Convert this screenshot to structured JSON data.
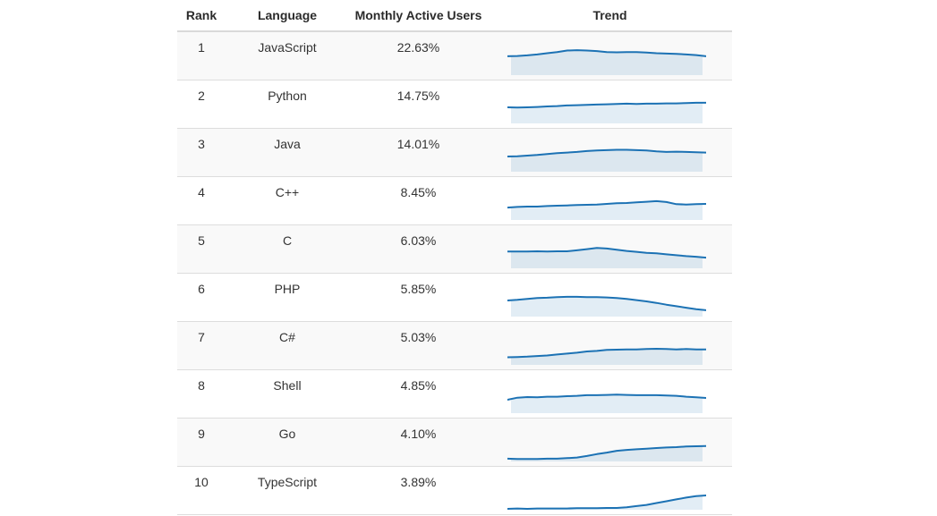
{
  "page": {
    "background": "#ffffff"
  },
  "table": {
    "columns": [
      {
        "label": "Rank"
      },
      {
        "label": "Language"
      },
      {
        "label": "Monthly Active Users"
      },
      {
        "label": "Trend"
      }
    ],
    "rows": [
      {
        "rank": "1",
        "language": "JavaScript",
        "mau": "22.63%"
      },
      {
        "rank": "2",
        "language": "Python",
        "mau": "14.75%"
      },
      {
        "rank": "3",
        "language": "Java",
        "mau": "14.01%"
      },
      {
        "rank": "4",
        "language": "C++",
        "mau": "8.45%"
      },
      {
        "rank": "5",
        "language": "C",
        "mau": "6.03%"
      },
      {
        "rank": "6",
        "language": "PHP",
        "mau": "5.85%"
      },
      {
        "rank": "7",
        "language": "C#",
        "mau": "5.03%"
      },
      {
        "rank": "8",
        "language": "Shell",
        "mau": "4.85%"
      },
      {
        "rank": "9",
        "language": "Go",
        "mau": "4.10%"
      },
      {
        "rank": "10",
        "language": "TypeScript",
        "mau": "3.89%"
      }
    ]
  },
  "chart_data": {
    "type": "table",
    "title": "",
    "columns": [
      "Rank",
      "Language",
      "Monthly Active Users",
      "Trend"
    ],
    "sparkline_type": "area",
    "trend_scale": "normalized 0-100 relative usage over time, higher = more active users",
    "colors": {
      "line": "#1c72b4",
      "fill": "rgba(28,114,180,0.13)",
      "row_alt_bg": "#f9f9f9",
      "border": "#dddddd"
    },
    "rows": [
      {
        "rank": 1,
        "language": "JavaScript",
        "monthly_active_users_pct": 22.63,
        "trend": [
          62,
          63,
          65,
          68,
          72,
          76,
          81,
          82,
          81,
          79,
          76,
          75,
          76,
          76,
          74,
          72,
          71,
          70,
          68,
          66,
          62
        ]
      },
      {
        "rank": 2,
        "language": "Python",
        "monthly_active_users_pct": 14.75,
        "trend": [
          53,
          52,
          53,
          54,
          56,
          57,
          59,
          60,
          61,
          62,
          63,
          64,
          65,
          64,
          65,
          65,
          66,
          66,
          67,
          68,
          68
        ]
      },
      {
        "rank": 3,
        "language": "Java",
        "monthly_active_users_pct": 14.01,
        "trend": [
          50,
          51,
          53,
          55,
          58,
          61,
          63,
          65,
          68,
          70,
          71,
          72,
          72,
          71,
          70,
          67,
          65,
          66,
          65,
          64,
          63
        ]
      },
      {
        "rank": 4,
        "language": "C++",
        "monthly_active_users_pct": 8.45,
        "trend": [
          41,
          43,
          44,
          44,
          46,
          47,
          48,
          49,
          50,
          51,
          53,
          55,
          56,
          58,
          60,
          62,
          59,
          52,
          51,
          52,
          53
        ]
      },
      {
        "rank": 5,
        "language": "C",
        "monthly_active_users_pct": 6.03,
        "trend": [
          55,
          55,
          55,
          56,
          55,
          56,
          56,
          59,
          63,
          67,
          65,
          61,
          57,
          54,
          51,
          49,
          46,
          43,
          40,
          38,
          35
        ]
      },
      {
        "rank": 6,
        "language": "PHP",
        "monthly_active_users_pct": 5.85,
        "trend": [
          53,
          55,
          58,
          61,
          62,
          64,
          65,
          65,
          64,
          64,
          63,
          61,
          58,
          54,
          50,
          45,
          39,
          34,
          29,
          24,
          21
        ]
      },
      {
        "rank": 7,
        "language": "C#",
        "monthly_active_users_pct": 5.03,
        "trend": [
          25,
          26,
          27,
          29,
          31,
          34,
          37,
          40,
          44,
          46,
          49,
          50,
          51,
          51,
          52,
          53,
          52,
          51,
          52,
          51,
          51
        ]
      },
      {
        "rank": 8,
        "language": "Shell",
        "monthly_active_users_pct": 4.85,
        "trend": [
          44,
          51,
          53,
          52,
          54,
          54,
          56,
          57,
          59,
          59,
          60,
          61,
          60,
          59,
          59,
          59,
          58,
          57,
          54,
          52,
          50
        ]
      },
      {
        "rank": 9,
        "language": "Go",
        "monthly_active_users_pct": 4.1,
        "trend": [
          9,
          8,
          8,
          8,
          9,
          9,
          11,
          13,
          18,
          24,
          29,
          35,
          38,
          40,
          42,
          44,
          46,
          47,
          49,
          50,
          51
        ]
      },
      {
        "rank": 10,
        "language": "TypeScript",
        "monthly_active_users_pct": 3.89,
        "trend": [
          3,
          4,
          3,
          4,
          4,
          4,
          4,
          5,
          5,
          5,
          6,
          6,
          8,
          12,
          16,
          22,
          28,
          34,
          40,
          45,
          47
        ]
      }
    ]
  }
}
